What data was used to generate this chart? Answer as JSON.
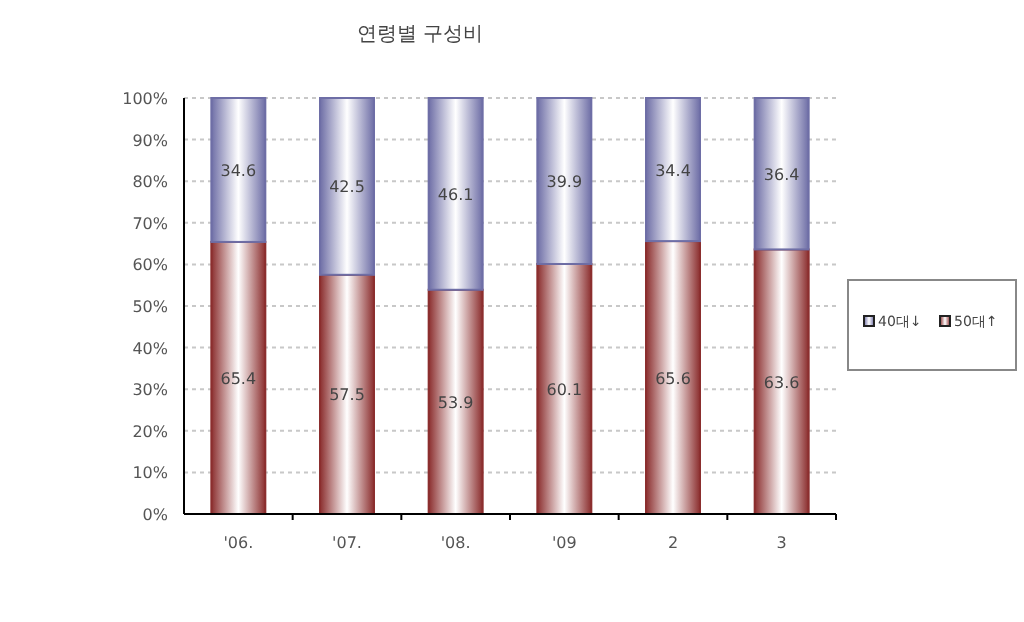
{
  "chart_data": {
    "type": "bar",
    "stacked": true,
    "title": "연령별 구성비",
    "categories": [
      "'06.",
      "'07.",
      "'08.",
      "'09",
      "2",
      "3"
    ],
    "series": [
      {
        "name": "50대↑",
        "color": "#8b2e2e",
        "values": [
          65.4,
          57.5,
          53.9,
          60.1,
          65.6,
          63.6
        ]
      },
      {
        "name": "40대↓",
        "color": "#6e6ea6",
        "values": [
          34.6,
          42.5,
          46.1,
          39.9,
          34.4,
          36.4
        ]
      }
    ],
    "ylim": [
      0,
      100
    ],
    "yticks": [
      {
        "value": 0,
        "label": "0%"
      },
      {
        "value": 10,
        "label": "10%"
      },
      {
        "value": 20,
        "label": "20%"
      },
      {
        "value": 30,
        "label": "30%"
      },
      {
        "value": 40,
        "label": "40%"
      },
      {
        "value": 50,
        "label": "50%"
      },
      {
        "value": 60,
        "label": "60%"
      },
      {
        "value": 70,
        "label": "70%"
      },
      {
        "value": 80,
        "label": "80%"
      },
      {
        "value": 90,
        "label": "90%"
      },
      {
        "value": 100,
        "label": "100%"
      }
    ],
    "grid": "y",
    "legend": "right",
    "data_labels": true
  }
}
